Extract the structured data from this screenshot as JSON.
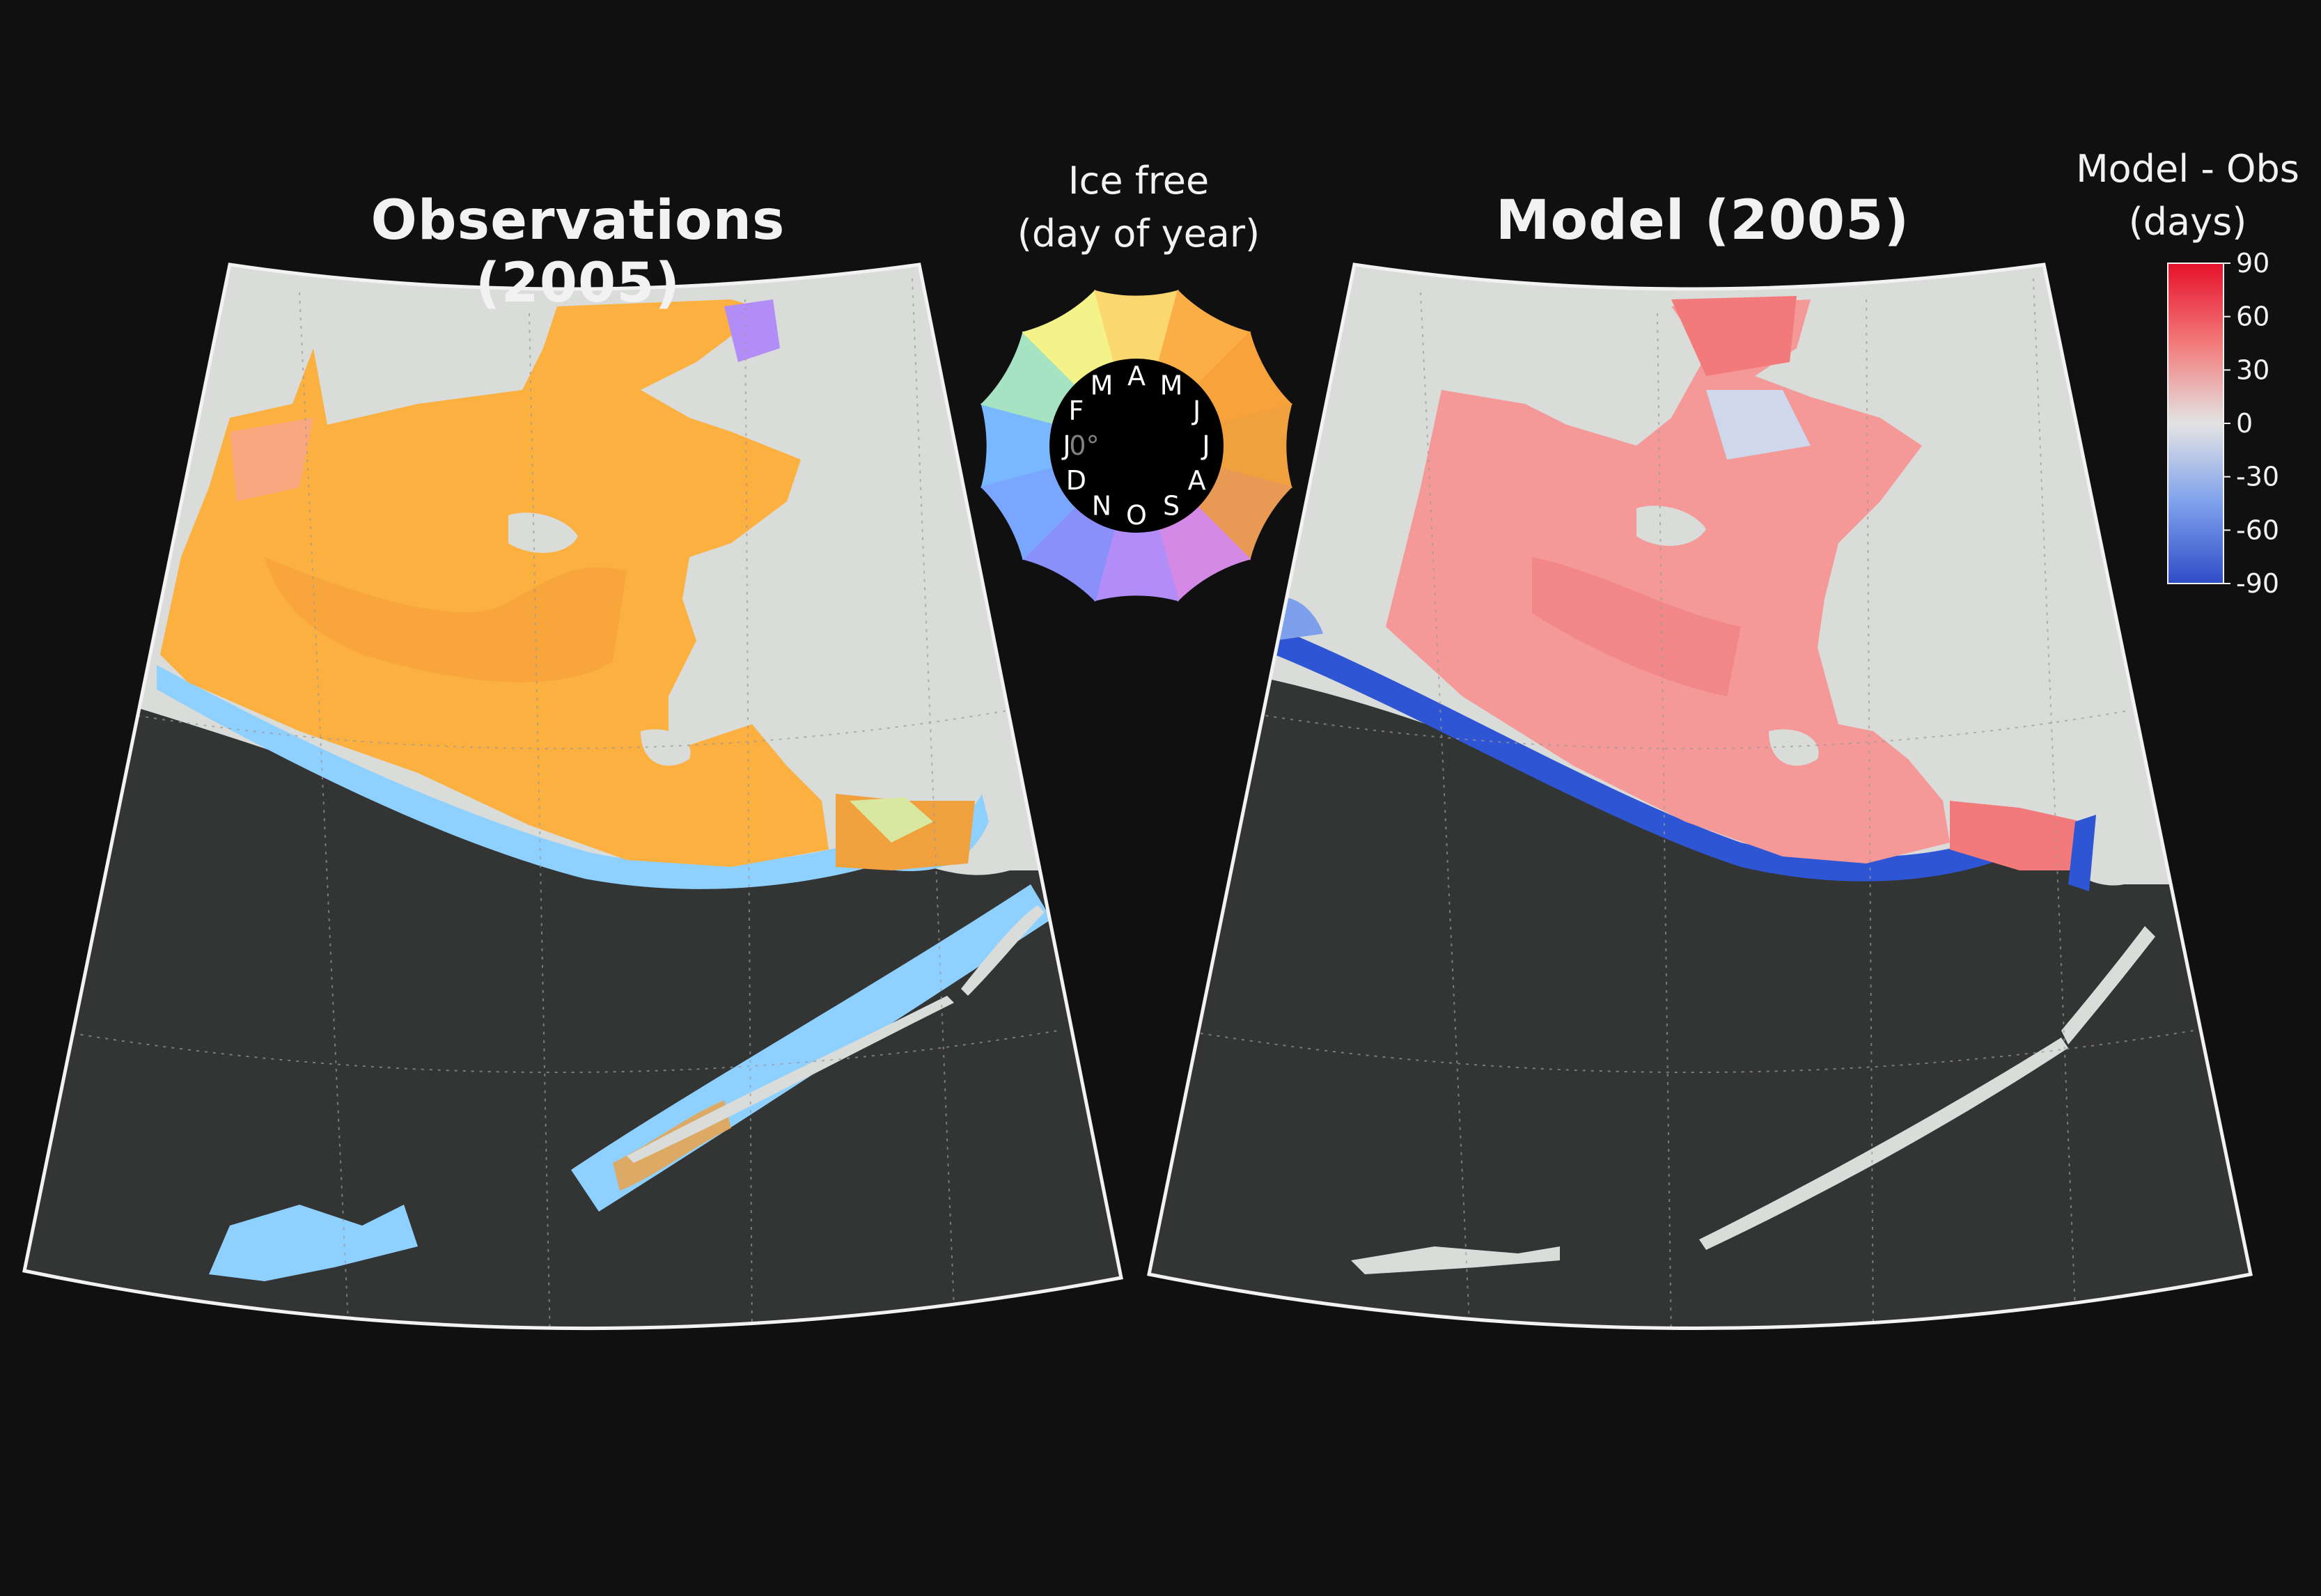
{
  "left_map": {
    "title": "Observations (2005)"
  },
  "right_map": {
    "title": "Model (2005)"
  },
  "ice_free_legend": {
    "title_line1": "Ice free",
    "title_line2": "(day of year)",
    "months": [
      "J",
      "F",
      "M",
      "A",
      "M",
      "J",
      "J",
      "A",
      "S",
      "O",
      "N",
      "D"
    ],
    "center_label": "0°",
    "colors": [
      "#79b8ff",
      "#a6e3c3",
      "#f3f38a",
      "#fbd770",
      "#fbae45",
      "#f7a23a",
      "#f0a03d",
      "#e89a55",
      "#d489e6",
      "#b28cf7",
      "#8a90fa",
      "#7aa6ff"
    ]
  },
  "colorbar": {
    "title_line1": "Model - Obs",
    "title_line2": "(days)",
    "ticks": [
      "90",
      "60",
      "30",
      "0",
      "-30",
      "-60",
      "-90"
    ],
    "tick_values": [
      90,
      60,
      30,
      0,
      -30,
      -60,
      -90
    ],
    "range": [
      -90,
      90
    ],
    "colors": {
      "max": "#e5112c",
      "zero": "#e3e3e3",
      "min": "#2f4cc7"
    }
  },
  "colors": {
    "background": "#101010",
    "land": "#d9dcd8",
    "ocean": "#333434",
    "obs_ice": "#fbb040",
    "obs_edge": "#8ed0ff",
    "model_ice": "#f59898",
    "model_edge": "#2e55d4"
  }
}
